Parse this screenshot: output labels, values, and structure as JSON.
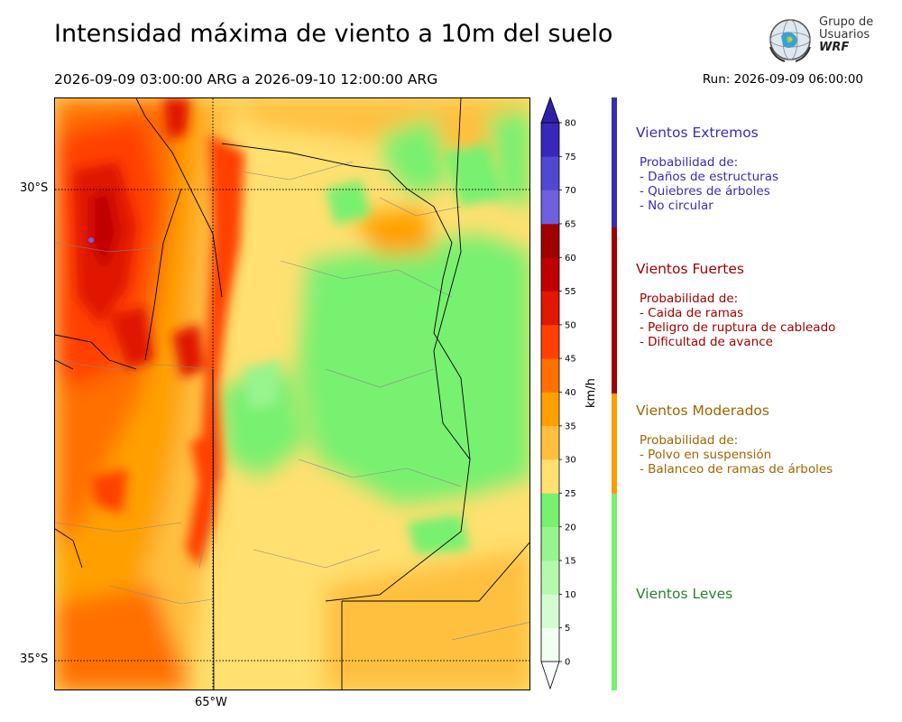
{
  "header": {
    "title": "Intensidad máxima de viento a 10m del suelo",
    "period": "2026-09-09 03:00:00 ARG  a  2026-09-10 12:00:00 ARG",
    "run": "Run: 2026-09-09 06:00:00"
  },
  "logo": {
    "line1": "Grupo de",
    "line2": "Usuarios",
    "line3": "WRF"
  },
  "map": {
    "lat_labels": [
      "30°S",
      "35°S"
    ],
    "lon_labels": [
      "65°W"
    ]
  },
  "colorbar": {
    "unit": "km/h",
    "ticks": [
      "0",
      "5",
      "10",
      "15",
      "20",
      "25",
      "30",
      "35",
      "40",
      "45",
      "50",
      "55",
      "60",
      "65",
      "70",
      "75",
      "80"
    ],
    "colors": [
      "#f0fff0",
      "#d4fcd0",
      "#b6f8ae",
      "#98f48e",
      "#78f070",
      "#ffe070",
      "#ffc040",
      "#ffa000",
      "#ff7000",
      "#ff4000",
      "#e01800",
      "#c00000",
      "#a00000",
      "#7060e0",
      "#5048d0",
      "#3828b8"
    ]
  },
  "categories": [
    {
      "title": "Vientos Extremos",
      "color": "#3a2db0",
      "heading": "Probabilidad de:",
      "items": [
        "- Daños de estructuras",
        "- Quiebres de árboles",
        "- No circular"
      ]
    },
    {
      "title": "Vientos Fuertes",
      "color": "#a00000",
      "heading": "Probabilidad de:",
      "items": [
        "- Caida de ramas",
        "- Peligro de ruptura de cableado",
        "- Dificultad de avance"
      ]
    },
    {
      "title": "Vientos Moderados",
      "color": "#a06400",
      "heading": "Probabilidad de:",
      "items": [
        "- Polvo en suspensión",
        "- Balanceo de ramas de árboles"
      ]
    },
    {
      "title": "Vientos Leves",
      "color": "#2e7d32",
      "heading": "",
      "items": []
    }
  ]
}
